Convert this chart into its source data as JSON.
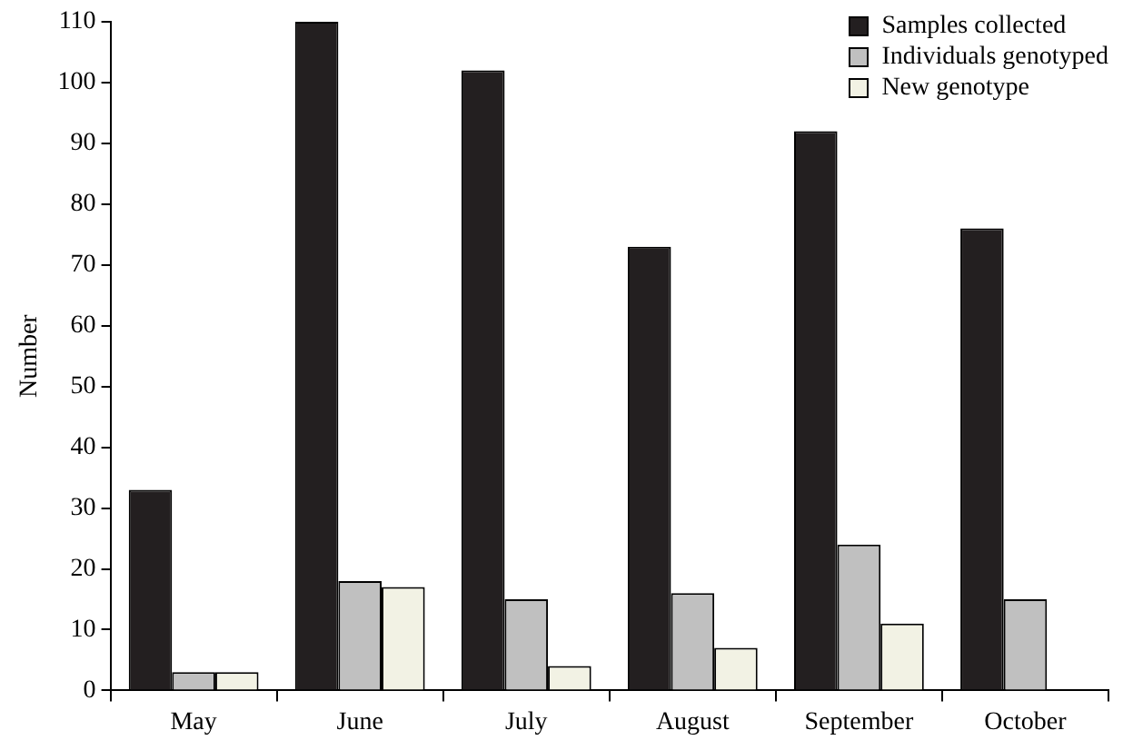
{
  "chart_data": {
    "type": "bar",
    "ylabel": "Number",
    "categories": [
      "May",
      "June",
      "July",
      "August",
      "September",
      "October"
    ],
    "series": [
      {
        "name": "Samples collected",
        "color": "#231f20",
        "values": [
          33,
          110,
          102,
          73,
          92,
          76
        ]
      },
      {
        "name": "Individuals genotyped",
        "color": "#c0c0c0",
        "values": [
          3,
          18,
          15,
          16,
          24,
          15
        ]
      },
      {
        "name": "New genotype",
        "color": "#f2f2e4",
        "values": [
          3,
          17,
          4,
          7,
          11,
          0
        ]
      }
    ],
    "ylim": [
      0,
      110
    ],
    "yticks": [
      0,
      10,
      20,
      30,
      40,
      50,
      60,
      70,
      80,
      90,
      100,
      110
    ],
    "grid": false,
    "legend": "top right"
  }
}
